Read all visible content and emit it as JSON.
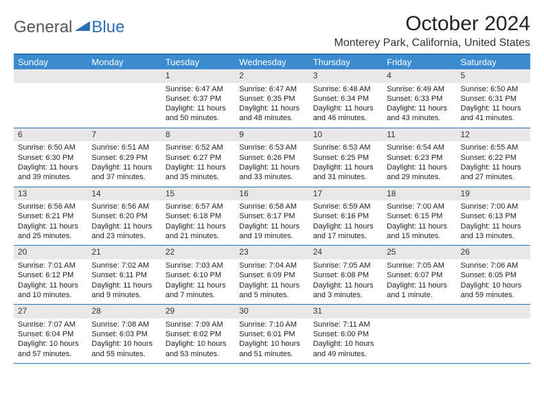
{
  "logo": {
    "general": "General",
    "blue": "Blue"
  },
  "header": {
    "title": "October 2024",
    "location": "Monterey Park, California, United States"
  },
  "colors": {
    "header_blue": "#3b8bd0",
    "border_blue": "#2a6fb5",
    "daynum_bg": "#e8e8e8",
    "text": "#222222",
    "white": "#ffffff"
  },
  "weekdays": [
    "Sunday",
    "Monday",
    "Tuesday",
    "Wednesday",
    "Thursday",
    "Friday",
    "Saturday"
  ],
  "weeks": [
    [
      null,
      null,
      {
        "n": "1",
        "sr": "Sunrise: 6:47 AM",
        "ss": "Sunset: 6:37 PM",
        "dl": "Daylight: 11 hours and 50 minutes."
      },
      {
        "n": "2",
        "sr": "Sunrise: 6:47 AM",
        "ss": "Sunset: 6:35 PM",
        "dl": "Daylight: 11 hours and 48 minutes."
      },
      {
        "n": "3",
        "sr": "Sunrise: 6:48 AM",
        "ss": "Sunset: 6:34 PM",
        "dl": "Daylight: 11 hours and 46 minutes."
      },
      {
        "n": "4",
        "sr": "Sunrise: 6:49 AM",
        "ss": "Sunset: 6:33 PM",
        "dl": "Daylight: 11 hours and 43 minutes."
      },
      {
        "n": "5",
        "sr": "Sunrise: 6:50 AM",
        "ss": "Sunset: 6:31 PM",
        "dl": "Daylight: 11 hours and 41 minutes."
      }
    ],
    [
      {
        "n": "6",
        "sr": "Sunrise: 6:50 AM",
        "ss": "Sunset: 6:30 PM",
        "dl": "Daylight: 11 hours and 39 minutes."
      },
      {
        "n": "7",
        "sr": "Sunrise: 6:51 AM",
        "ss": "Sunset: 6:29 PM",
        "dl": "Daylight: 11 hours and 37 minutes."
      },
      {
        "n": "8",
        "sr": "Sunrise: 6:52 AM",
        "ss": "Sunset: 6:27 PM",
        "dl": "Daylight: 11 hours and 35 minutes."
      },
      {
        "n": "9",
        "sr": "Sunrise: 6:53 AM",
        "ss": "Sunset: 6:26 PM",
        "dl": "Daylight: 11 hours and 33 minutes."
      },
      {
        "n": "10",
        "sr": "Sunrise: 6:53 AM",
        "ss": "Sunset: 6:25 PM",
        "dl": "Daylight: 11 hours and 31 minutes."
      },
      {
        "n": "11",
        "sr": "Sunrise: 6:54 AM",
        "ss": "Sunset: 6:23 PM",
        "dl": "Daylight: 11 hours and 29 minutes."
      },
      {
        "n": "12",
        "sr": "Sunrise: 6:55 AM",
        "ss": "Sunset: 6:22 PM",
        "dl": "Daylight: 11 hours and 27 minutes."
      }
    ],
    [
      {
        "n": "13",
        "sr": "Sunrise: 6:56 AM",
        "ss": "Sunset: 6:21 PM",
        "dl": "Daylight: 11 hours and 25 minutes."
      },
      {
        "n": "14",
        "sr": "Sunrise: 6:56 AM",
        "ss": "Sunset: 6:20 PM",
        "dl": "Daylight: 11 hours and 23 minutes."
      },
      {
        "n": "15",
        "sr": "Sunrise: 6:57 AM",
        "ss": "Sunset: 6:18 PM",
        "dl": "Daylight: 11 hours and 21 minutes."
      },
      {
        "n": "16",
        "sr": "Sunrise: 6:58 AM",
        "ss": "Sunset: 6:17 PM",
        "dl": "Daylight: 11 hours and 19 minutes."
      },
      {
        "n": "17",
        "sr": "Sunrise: 6:59 AM",
        "ss": "Sunset: 6:16 PM",
        "dl": "Daylight: 11 hours and 17 minutes."
      },
      {
        "n": "18",
        "sr": "Sunrise: 7:00 AM",
        "ss": "Sunset: 6:15 PM",
        "dl": "Daylight: 11 hours and 15 minutes."
      },
      {
        "n": "19",
        "sr": "Sunrise: 7:00 AM",
        "ss": "Sunset: 6:13 PM",
        "dl": "Daylight: 11 hours and 13 minutes."
      }
    ],
    [
      {
        "n": "20",
        "sr": "Sunrise: 7:01 AM",
        "ss": "Sunset: 6:12 PM",
        "dl": "Daylight: 11 hours and 10 minutes."
      },
      {
        "n": "21",
        "sr": "Sunrise: 7:02 AM",
        "ss": "Sunset: 6:11 PM",
        "dl": "Daylight: 11 hours and 9 minutes."
      },
      {
        "n": "22",
        "sr": "Sunrise: 7:03 AM",
        "ss": "Sunset: 6:10 PM",
        "dl": "Daylight: 11 hours and 7 minutes."
      },
      {
        "n": "23",
        "sr": "Sunrise: 7:04 AM",
        "ss": "Sunset: 6:09 PM",
        "dl": "Daylight: 11 hours and 5 minutes."
      },
      {
        "n": "24",
        "sr": "Sunrise: 7:05 AM",
        "ss": "Sunset: 6:08 PM",
        "dl": "Daylight: 11 hours and 3 minutes."
      },
      {
        "n": "25",
        "sr": "Sunrise: 7:05 AM",
        "ss": "Sunset: 6:07 PM",
        "dl": "Daylight: 11 hours and 1 minute."
      },
      {
        "n": "26",
        "sr": "Sunrise: 7:06 AM",
        "ss": "Sunset: 6:05 PM",
        "dl": "Daylight: 10 hours and 59 minutes."
      }
    ],
    [
      {
        "n": "27",
        "sr": "Sunrise: 7:07 AM",
        "ss": "Sunset: 6:04 PM",
        "dl": "Daylight: 10 hours and 57 minutes."
      },
      {
        "n": "28",
        "sr": "Sunrise: 7:08 AM",
        "ss": "Sunset: 6:03 PM",
        "dl": "Daylight: 10 hours and 55 minutes."
      },
      {
        "n": "29",
        "sr": "Sunrise: 7:09 AM",
        "ss": "Sunset: 6:02 PM",
        "dl": "Daylight: 10 hours and 53 minutes."
      },
      {
        "n": "30",
        "sr": "Sunrise: 7:10 AM",
        "ss": "Sunset: 6:01 PM",
        "dl": "Daylight: 10 hours and 51 minutes."
      },
      {
        "n": "31",
        "sr": "Sunrise: 7:11 AM",
        "ss": "Sunset: 6:00 PM",
        "dl": "Daylight: 10 hours and 49 minutes."
      },
      null,
      null
    ]
  ]
}
